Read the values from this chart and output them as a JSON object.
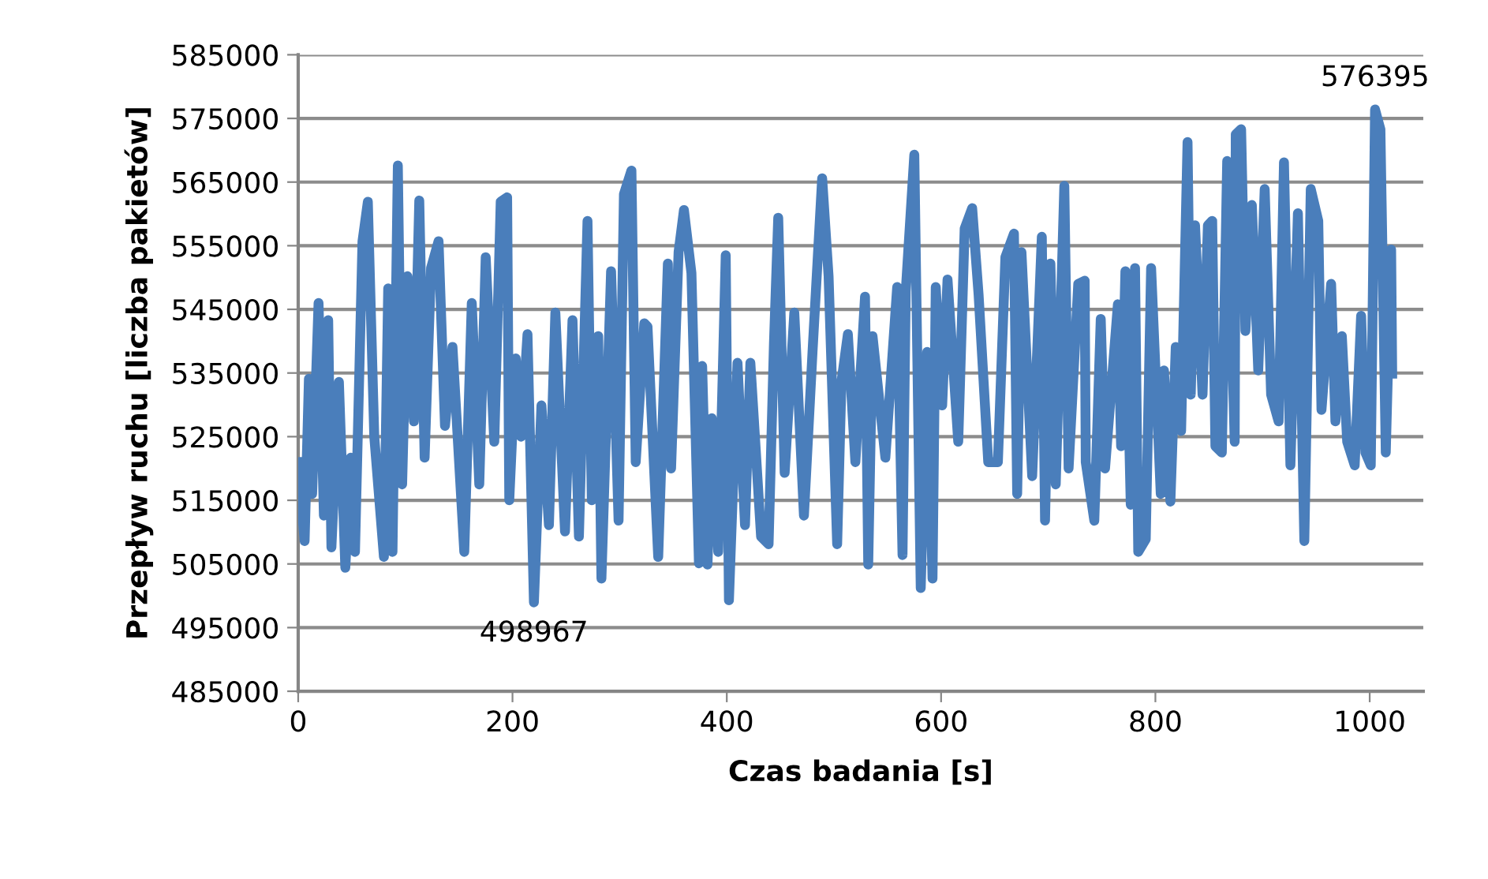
{
  "chart_data": {
    "type": "line",
    "xlabel": "Czas badania [s]",
    "ylabel": "Przepływ ruchu [liczba pakietów]",
    "x": [
      0,
      6,
      10,
      13,
      19,
      24,
      28,
      31,
      38,
      44,
      49,
      53,
      60,
      65,
      71,
      80,
      84,
      88,
      93,
      97,
      102,
      108,
      113,
      118,
      124,
      131,
      137,
      144,
      155,
      162,
      169,
      175,
      183,
      189,
      195,
      197,
      203,
      208,
      214,
      220,
      227,
      234,
      240,
      249,
      256,
      262,
      270,
      274,
      280,
      283,
      292,
      299,
      304,
      311,
      315,
      323,
      326,
      336,
      345,
      348,
      355,
      360,
      367,
      374,
      377,
      382,
      386,
      392,
      399,
      402,
      410,
      417,
      422,
      432,
      439,
      444,
      448,
      454,
      463,
      472,
      480,
      489,
      495,
      503,
      507,
      513,
      520,
      529,
      532,
      536,
      548,
      559,
      564,
      567,
      575,
      581,
      587,
      592,
      595,
      601,
      606,
      616,
      622,
      629,
      635,
      644,
      653,
      660,
      668,
      671,
      675,
      685,
      694,
      697,
      702,
      707,
      715,
      719,
      728,
      734,
      735,
      743,
      749,
      753,
      765,
      768,
      772,
      777,
      781,
      784,
      791,
      796,
      805,
      808,
      814,
      819,
      824,
      830,
      833,
      837,
      844,
      849,
      853,
      856,
      862,
      867,
      874,
      875,
      880,
      884,
      890,
      896,
      902,
      908,
      915,
      920,
      926,
      933,
      939,
      945,
      952,
      955,
      964,
      968,
      974,
      979,
      986,
      992,
      996,
      1001,
      1005,
      1010,
      1015,
      1020,
      1021
    ],
    "series": [
      {
        "color": "#4a7ebb",
        "values": [
          521000,
          508600,
          534100,
          516000,
          546000,
          512600,
          543300,
          507600,
          533600,
          504400,
          521700,
          506900,
          555700,
          561900,
          525000,
          506100,
          548300,
          506900,
          567600,
          517500,
          550200,
          527400,
          562100,
          521700,
          551500,
          555700,
          526700,
          539100,
          506900,
          546000,
          517500,
          553200,
          524200,
          561900,
          562600,
          515000,
          537300,
          525000,
          541100,
          498967,
          529900,
          511100,
          544500,
          510100,
          543300,
          509300,
          558900,
          515000,
          540800,
          502700,
          551000,
          511800,
          563100,
          566800,
          521000,
          542800,
          542300,
          506100,
          552200,
          520000,
          554000,
          560600,
          550700,
          505100,
          536100,
          504900,
          527900,
          506900,
          553500,
          499300,
          536600,
          511100,
          536600,
          509300,
          508100,
          539600,
          559400,
          519300,
          544500,
          512600,
          538300,
          565600,
          550200,
          508100,
          533600,
          541100,
          521000,
          547000,
          504900,
          540800,
          521700,
          548500,
          506400,
          547800,
          569300,
          501200,
          538300,
          502700,
          548500,
          529900,
          549700,
          524200,
          557700,
          560900,
          547300,
          521000,
          521000,
          553200,
          556900,
          516000,
          554000,
          518800,
          556400,
          511800,
          552200,
          517500,
          564400,
          520000,
          549000,
          549500,
          521000,
          511800,
          543500,
          520000,
          545800,
          523500,
          551000,
          514300,
          551500,
          506900,
          508900,
          551500,
          516000,
          535400,
          514800,
          539100,
          525900,
          571300,
          531600,
          558200,
          531600,
          558200,
          558900,
          523500,
          522500,
          568300,
          524200,
          572500,
          573300,
          541600,
          561400,
          535400,
          563900,
          531600,
          527400,
          568100,
          520500,
          560100,
          508600,
          563900,
          558900,
          529200,
          549000,
          527400,
          540800,
          524200,
          520500,
          544000,
          522500,
          520500,
          576395,
          573300,
          522500,
          554400,
          534900
        ]
      }
    ],
    "xlim": [
      0,
      1050
    ],
    "xticks": [
      0,
      200,
      400,
      600,
      800,
      1000
    ],
    "ylim": [
      485000,
      585000
    ],
    "yticks": [
      485000,
      495000,
      505000,
      515000,
      525000,
      535000,
      545000,
      555000,
      565000,
      575000,
      585000
    ],
    "grid": "y",
    "legend": false,
    "marker": "none",
    "line_style": "solid",
    "annotations": [
      {
        "text": "498967",
        "x": 220,
        "y": 498967
      },
      {
        "text": "576395",
        "x": 1005,
        "y": 576395
      }
    ]
  }
}
